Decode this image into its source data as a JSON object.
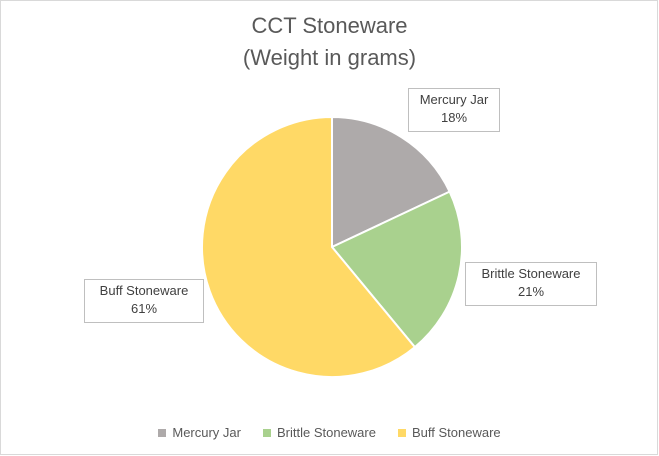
{
  "chart_data": {
    "type": "pie",
    "title": [
      "CCT Stoneware",
      "(Weight in grams)"
    ],
    "categories": [
      "Mercury Jar",
      "Brittle Stoneware",
      "Buff Stoneware"
    ],
    "values": [
      18,
      21,
      61
    ],
    "data_labels": [
      {
        "name": "Mercury Jar",
        "value": "18%"
      },
      {
        "name": "Brittle Stoneware",
        "value": "21%"
      },
      {
        "name": "Buff Stoneware",
        "value": "61%"
      }
    ],
    "colors": [
      "#aeaaaa",
      "#a9d18e",
      "#ffd966"
    ],
    "legend": "bottom"
  }
}
